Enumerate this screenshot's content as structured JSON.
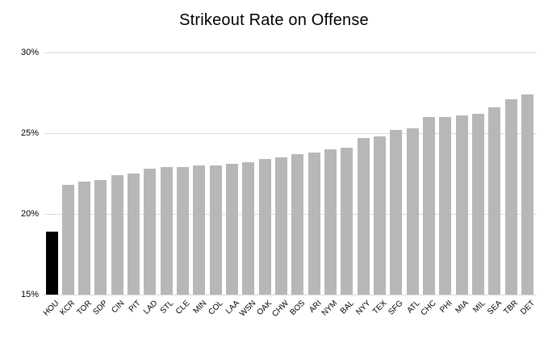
{
  "chart_data": {
    "type": "bar",
    "title": "Strikeout Rate on Offense",
    "xlabel": "",
    "ylabel": "",
    "categories": [
      "HOU",
      "KCR",
      "TOR",
      "SDP",
      "CIN",
      "PIT",
      "LAD",
      "STL",
      "CLE",
      "MIN",
      "COL",
      "LAA",
      "WSN",
      "OAK",
      "CHW",
      "BOS",
      "ARI",
      "NYM",
      "BAL",
      "NYY",
      "TEX",
      "SFG",
      "ATL",
      "CHC",
      "PHI",
      "MIA",
      "MIL",
      "SEA",
      "TBR",
      "DET"
    ],
    "values": [
      18.9,
      21.8,
      22.0,
      22.1,
      22.4,
      22.5,
      22.8,
      22.9,
      22.9,
      23.0,
      23.0,
      23.1,
      23.2,
      23.4,
      23.5,
      23.7,
      23.8,
      24.0,
      24.1,
      24.7,
      24.8,
      25.2,
      25.3,
      26.0,
      26.0,
      26.1,
      26.2,
      26.6,
      27.1,
      27.4
    ],
    "value_unit": "%",
    "highlight_category": "HOU",
    "ylim": [
      15,
      30
    ],
    "yticks": [
      {
        "value": 15,
        "label": "15%"
      },
      {
        "value": 20,
        "label": "20%"
      },
      {
        "value": 25,
        "label": "25%"
      },
      {
        "value": 30,
        "label": "30%"
      }
    ],
    "grid": "horizontal",
    "legend": "none",
    "colors": {
      "bar": "#b7b7b7",
      "highlight": "#000000",
      "gridline": "#d9d9d9",
      "text": "#000000",
      "background": "#ffffff"
    }
  }
}
